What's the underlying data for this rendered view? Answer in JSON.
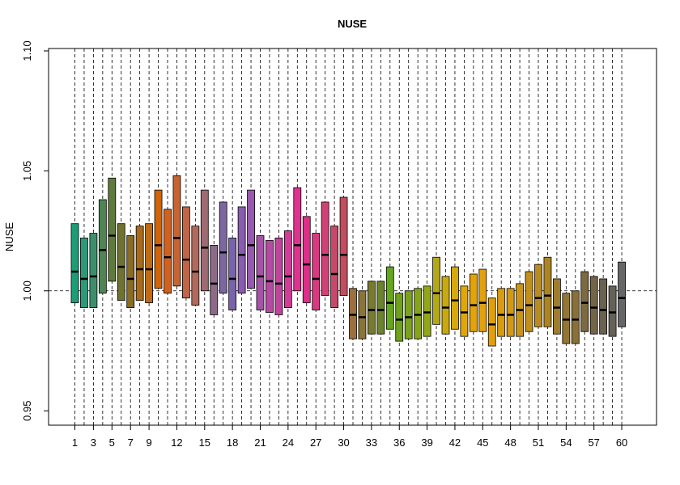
{
  "chart_data": {
    "type": "boxplot",
    "title": "NUSE",
    "ylabel": "NUSE",
    "xlabel": "",
    "ylim": [
      0.944,
      1.101
    ],
    "y_ticks": [
      "0.95",
      "1.00",
      "1.05",
      "1.10"
    ],
    "y_tick_values": [
      0.95,
      1.0,
      1.05,
      1.1
    ],
    "x_tick_labels": [
      "1",
      "3",
      "5",
      "7",
      "9",
      "12",
      "15",
      "18",
      "21",
      "24",
      "27",
      "30",
      "33",
      "36",
      "39",
      "42",
      "45",
      "48",
      "51",
      "54",
      "57",
      "60"
    ],
    "x_tick_positions": [
      1,
      3,
      5,
      7,
      9,
      12,
      15,
      18,
      21,
      24,
      27,
      30,
      33,
      36,
      39,
      42,
      45,
      48,
      51,
      54,
      57,
      60
    ],
    "reference_line": 1.0,
    "vertical_gridlines": "dashed at each box",
    "boxes": [
      {
        "x": 1,
        "q1": 0.995,
        "median": 1.008,
        "q3": 1.028,
        "color": "#1b9e77"
      },
      {
        "x": 2,
        "q1": 0.993,
        "median": 1.005,
        "q3": 1.022,
        "color": "#2e9877"
      },
      {
        "x": 3,
        "q1": 0.993,
        "median": 1.006,
        "q3": 1.024,
        "color": "#3f8e6b"
      },
      {
        "x": 4,
        "q1": 0.999,
        "median": 1.017,
        "q3": 1.038,
        "color": "#4f8553"
      },
      {
        "x": 5,
        "q1": 1.004,
        "median": 1.023,
        "q3": 1.047,
        "color": "#5f7b3c"
      },
      {
        "x": 6,
        "q1": 0.996,
        "median": 1.01,
        "q3": 1.028,
        "color": "#6f7230"
      },
      {
        "x": 7,
        "q1": 0.993,
        "median": 1.005,
        "q3": 1.023,
        "color": "#8a6b24"
      },
      {
        "x": 8,
        "q1": 0.996,
        "median": 1.009,
        "q3": 1.027,
        "color": "#a86a1c"
      },
      {
        "x": 9,
        "q1": 0.995,
        "median": 1.009,
        "q3": 1.028,
        "color": "#c06a14"
      },
      {
        "x": 10,
        "q1": 1.001,
        "median": 1.019,
        "q3": 1.042,
        "color": "#d16308"
      },
      {
        "x": 11,
        "q1": 0.999,
        "median": 1.014,
        "q3": 1.034,
        "color": "#cf6220"
      },
      {
        "x": 12,
        "q1": 1.002,
        "median": 1.022,
        "q3": 1.048,
        "color": "#c86432"
      },
      {
        "x": 13,
        "q1": 0.997,
        "median": 1.013,
        "q3": 1.035,
        "color": "#c06646"
      },
      {
        "x": 14,
        "q1": 0.994,
        "median": 1.008,
        "q3": 1.027,
        "color": "#b06a5c"
      },
      {
        "x": 15,
        "q1": 1.0,
        "median": 1.018,
        "q3": 1.042,
        "color": "#a06a72"
      },
      {
        "x": 16,
        "q1": 0.99,
        "median": 1.003,
        "q3": 1.019,
        "color": "#8c6a88"
      },
      {
        "x": 17,
        "q1": 0.999,
        "median": 1.016,
        "q3": 1.037,
        "color": "#7d67a0"
      },
      {
        "x": 18,
        "q1": 0.992,
        "median": 1.005,
        "q3": 1.022,
        "color": "#7a63ac"
      },
      {
        "x": 19,
        "q1": 0.999,
        "median": 1.015,
        "q3": 1.035,
        "color": "#8a5cae"
      },
      {
        "x": 20,
        "q1": 1.001,
        "median": 1.019,
        "q3": 1.042,
        "color": "#9758ad"
      },
      {
        "x": 21,
        "q1": 0.992,
        "median": 1.006,
        "q3": 1.023,
        "color": "#a652a8"
      },
      {
        "x": 22,
        "q1": 0.991,
        "median": 1.004,
        "q3": 1.021,
        "color": "#b44aa2"
      },
      {
        "x": 23,
        "q1": 0.99,
        "median": 1.003,
        "q3": 1.022,
        "color": "#c2439c"
      },
      {
        "x": 24,
        "q1": 0.993,
        "median": 1.006,
        "q3": 1.025,
        "color": "#d03c96"
      },
      {
        "x": 25,
        "q1": 1.0,
        "median": 1.019,
        "q3": 1.043,
        "color": "#dd3490"
      },
      {
        "x": 26,
        "q1": 0.995,
        "median": 1.011,
        "q3": 1.031,
        "color": "#e02d8a"
      },
      {
        "x": 27,
        "q1": 0.992,
        "median": 1.005,
        "q3": 1.024,
        "color": "#d83a80"
      },
      {
        "x": 28,
        "q1": 0.998,
        "median": 1.015,
        "q3": 1.037,
        "color": "#d04276"
      },
      {
        "x": 29,
        "q1": 0.993,
        "median": 1.007,
        "q3": 1.027,
        "color": "#c8486a"
      },
      {
        "x": 30,
        "q1": 0.998,
        "median": 1.015,
        "q3": 1.039,
        "color": "#c04e5e"
      },
      {
        "x": 31,
        "q1": 0.98,
        "median": 0.99,
        "q3": 1.001,
        "color": "#9c6f3e"
      },
      {
        "x": 32,
        "q1": 0.98,
        "median": 0.989,
        "q3": 1.0,
        "color": "#8a7438"
      },
      {
        "x": 33,
        "q1": 0.982,
        "median": 0.992,
        "q3": 1.004,
        "color": "#787a32"
      },
      {
        "x": 34,
        "q1": 0.982,
        "median": 0.992,
        "q3": 1.004,
        "color": "#6a842c"
      },
      {
        "x": 35,
        "q1": 0.984,
        "median": 0.995,
        "q3": 1.01,
        "color": "#66a61e"
      },
      {
        "x": 36,
        "q1": 0.979,
        "median": 0.988,
        "q3": 0.999,
        "color": "#6ea21e"
      },
      {
        "x": 37,
        "q1": 0.98,
        "median": 0.989,
        "q3": 1.0,
        "color": "#7aa31c"
      },
      {
        "x": 38,
        "q1": 0.98,
        "median": 0.99,
        "q3": 1.001,
        "color": "#86a41a"
      },
      {
        "x": 39,
        "q1": 0.981,
        "median": 0.991,
        "q3": 1.002,
        "color": "#92a618"
      },
      {
        "x": 40,
        "q1": 0.986,
        "median": 0.999,
        "q3": 1.014,
        "color": "#b3a816"
      },
      {
        "x": 41,
        "q1": 0.982,
        "median": 0.993,
        "q3": 1.006,
        "color": "#c8a912"
      },
      {
        "x": 42,
        "q1": 0.984,
        "median": 0.996,
        "q3": 1.01,
        "color": "#d8a80c"
      },
      {
        "x": 43,
        "q1": 0.981,
        "median": 0.991,
        "q3": 1.002,
        "color": "#e0a708"
      },
      {
        "x": 44,
        "q1": 0.983,
        "median": 0.994,
        "q3": 1.007,
        "color": "#e2a40a"
      },
      {
        "x": 45,
        "q1": 0.983,
        "median": 0.995,
        "q3": 1.009,
        "color": "#e4a10c"
      },
      {
        "x": 46,
        "q1": 0.977,
        "median": 0.986,
        "q3": 0.997,
        "color": "#e19f0e"
      },
      {
        "x": 47,
        "q1": 0.981,
        "median": 0.99,
        "q3": 1.001,
        "color": "#d99c10"
      },
      {
        "x": 48,
        "q1": 0.981,
        "median": 0.99,
        "q3": 1.001,
        "color": "#d19914"
      },
      {
        "x": 49,
        "q1": 0.981,
        "median": 0.992,
        "q3": 1.003,
        "color": "#c99518"
      },
      {
        "x": 50,
        "q1": 0.983,
        "median": 0.994,
        "q3": 1.008,
        "color": "#c1901c"
      },
      {
        "x": 51,
        "q1": 0.985,
        "median": 0.997,
        "q3": 1.011,
        "color": "#b98b20"
      },
      {
        "x": 52,
        "q1": 0.985,
        "median": 0.998,
        "q3": 1.014,
        "color": "#ad8424"
      },
      {
        "x": 53,
        "q1": 0.982,
        "median": 0.993,
        "q3": 1.005,
        "color": "#a07d2c"
      },
      {
        "x": 54,
        "q1": 0.978,
        "median": 0.988,
        "q3": 0.999,
        "color": "#947632"
      },
      {
        "x": 55,
        "q1": 0.978,
        "median": 0.988,
        "q3": 1.0,
        "color": "#887038"
      },
      {
        "x": 56,
        "q1": 0.983,
        "median": 0.995,
        "q3": 1.008,
        "color": "#7c6a40"
      },
      {
        "x": 57,
        "q1": 0.982,
        "median": 0.993,
        "q3": 1.006,
        "color": "#726548"
      },
      {
        "x": 58,
        "q1": 0.982,
        "median": 0.992,
        "q3": 1.005,
        "color": "#6a6150"
      },
      {
        "x": 59,
        "q1": 0.981,
        "median": 0.991,
        "q3": 1.002,
        "color": "#656058"
      },
      {
        "x": 60,
        "q1": 0.985,
        "median": 0.997,
        "q3": 1.012,
        "color": "#666666"
      }
    ]
  }
}
